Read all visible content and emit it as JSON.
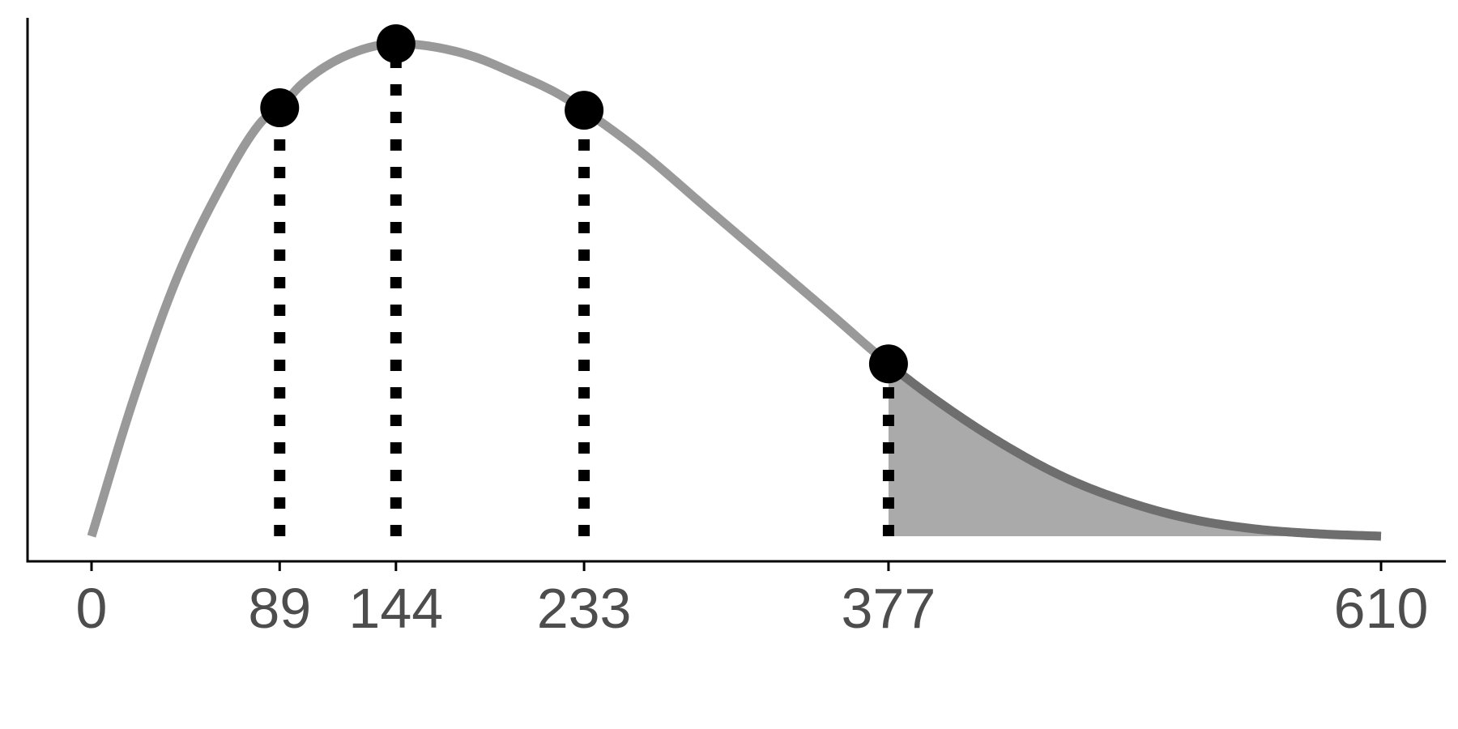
{
  "chart_data": {
    "type": "line",
    "title": "",
    "xlabel": "",
    "ylabel": "",
    "xlim": [
      0,
      610
    ],
    "ylim": [
      0,
      1
    ],
    "grid": false,
    "legend": "none",
    "x_ticks": [
      0,
      89,
      144,
      233,
      377,
      610
    ],
    "x_tick_labels": [
      "0",
      "89",
      "144",
      "233",
      "377",
      "610"
    ],
    "series": [
      {
        "color": "#999999",
        "x": [
          0,
          20,
          40,
          60,
          80,
          89,
          100,
          120,
          144,
          160,
          180,
          200,
          220,
          233,
          260,
          290,
          320,
          350,
          377,
          400,
          430,
          460,
          490,
          520,
          550,
          580,
          610
        ],
        "y": [
          0.0,
          0.28,
          0.52,
          0.7,
          0.84,
          0.87,
          0.92,
          0.975,
          1.0,
          0.995,
          0.975,
          0.94,
          0.9,
          0.865,
          0.78,
          0.67,
          0.56,
          0.45,
          0.35,
          0.275,
          0.19,
          0.12,
          0.07,
          0.035,
          0.015,
          0.005,
          0.0
        ]
      }
    ],
    "markers": [
      {
        "x": 89,
        "y": 0.87
      },
      {
        "x": 144,
        "y": 1.0
      },
      {
        "x": 233,
        "y": 0.865
      },
      {
        "x": 377,
        "y": 0.35
      }
    ],
    "shaded_region": {
      "from": 377,
      "to": 610,
      "fill": "#aaaaaa"
    },
    "colors": {
      "curve": "#999999",
      "curve_shaded": "#6e6e6e",
      "marker": "#000000",
      "axis": "#000000",
      "tick_label": "#4d4d4d"
    }
  }
}
